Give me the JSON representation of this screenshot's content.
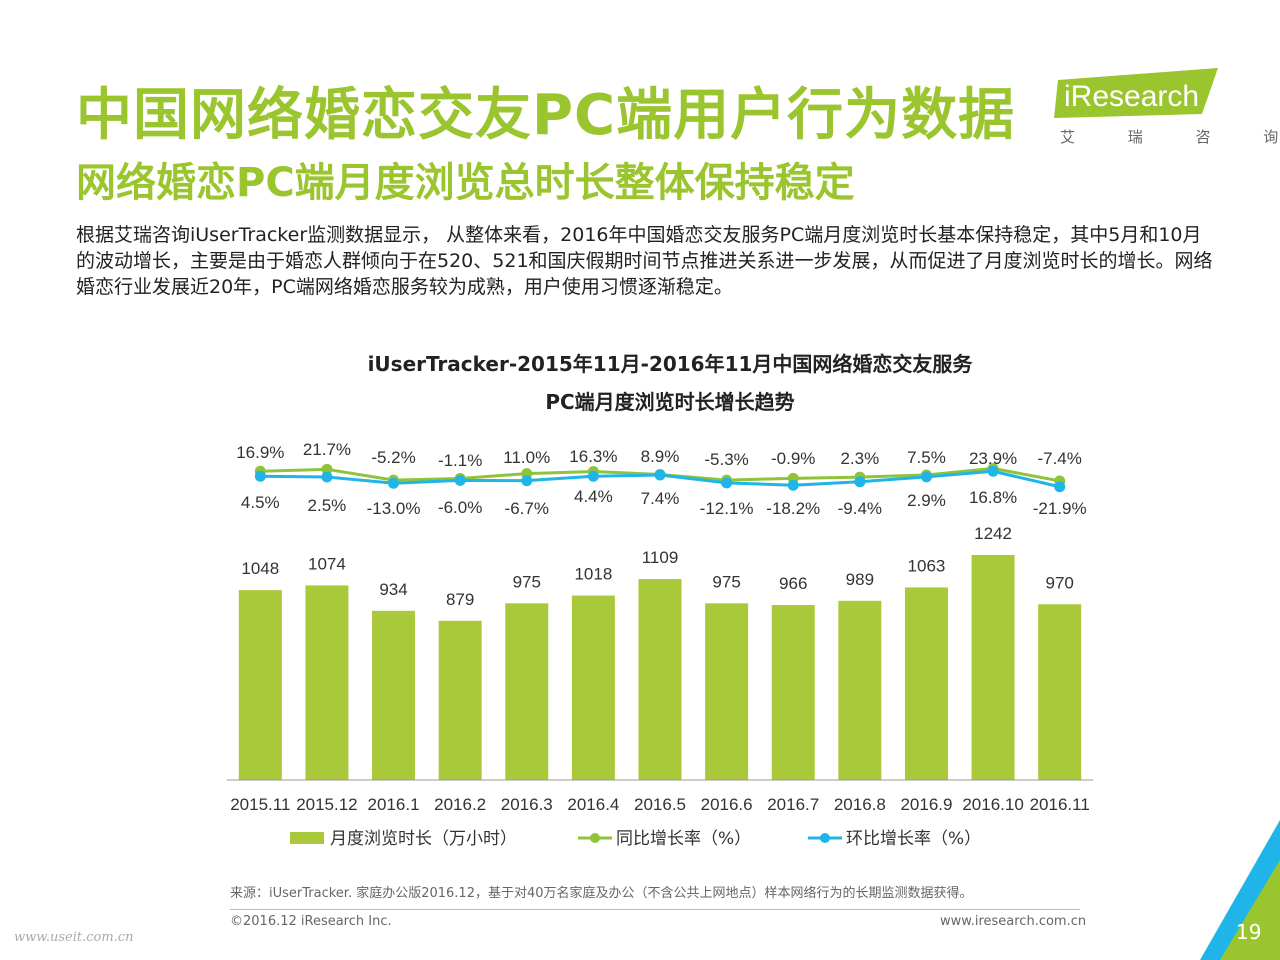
{
  "title": "中国网络婚恋交友PC端用户行为数据",
  "subtitle": "网络婚恋PC端月度浏览总时长整体保持稳定",
  "logo": {
    "brand": "iResearch",
    "sub": "艾 瑞 咨 询",
    "color": "#9ac52e"
  },
  "body_text": "根据艾瑞咨询iUserTracker监测数据显示， 从整体来看，2016年中国婚恋交友服务PC端月度浏览时长基本保持稳定，其中5月和10月的波动增长，主要是由于婚恋人群倾向于在520、521和国庆假期时间节点推进关系进一步发展，从而促进了月度浏览时长的增长。网络婚恋行业发展近20年，PC端网络婚恋服务较为成熟，用户使用习惯逐渐稳定。",
  "chart_data": {
    "type": "bar",
    "title_line1": "iUserTracker-2015年11月-2016年11月中国网络婚恋交友服务",
    "title_line2": "PC端月度浏览时长增长趋势",
    "categories": [
      "2015.11",
      "2015.12",
      "2016.1",
      "2016.2",
      "2016.3",
      "2016.4",
      "2016.5",
      "2016.6",
      "2016.7",
      "2016.8",
      "2016.9",
      "2016.10",
      "2016.11"
    ],
    "series": [
      {
        "name": "月度浏览时长（万小时）",
        "type": "bar",
        "color": "#a9c93a",
        "values": [
          1048,
          1074,
          934,
          879,
          975,
          1018,
          1109,
          975,
          966,
          989,
          1063,
          1242,
          970
        ]
      },
      {
        "name": "同比增长率（%）",
        "type": "line",
        "color": "#8fc43a",
        "values": [
          16.9,
          21.7,
          -5.2,
          -1.1,
          11.0,
          16.3,
          8.9,
          -5.3,
          -0.9,
          2.3,
          7.5,
          23.9,
          -7.4
        ],
        "labels": [
          "16.9%",
          "21.7%",
          "-5.2%",
          "-1.1%",
          "11.0%",
          "16.3%",
          "8.9%",
          "-5.3%",
          "-0.9%",
          "2.3%",
          "7.5%",
          "23.9%",
          "-7.4%"
        ]
      },
      {
        "name": "环比增长率（%）",
        "type": "line",
        "color": "#1fb5e8",
        "values": [
          4.5,
          2.5,
          -13.0,
          -6.0,
          -6.7,
          4.4,
          7.4,
          -12.1,
          -18.2,
          -9.4,
          2.9,
          16.8,
          -21.9
        ],
        "labels": [
          "4.5%",
          "2.5%",
          "-13.0%",
          "-6.0%",
          "-6.7%",
          "4.4%",
          "7.4%",
          "-12.1%",
          "-18.2%",
          "-9.4%",
          "2.9%",
          "16.8%",
          "-21.9%"
        ]
      }
    ],
    "grid": false,
    "legend_position": "bottom"
  },
  "source": "来源：iUserTracker. 家庭办公版2016.12，基于对40万名家庭及办公（不含公共上网地点）样本网络行为的长期监测数据获得。",
  "copyright": "©2016.12 iResearch Inc.",
  "website": "www.iresearch.com.cn",
  "watermark": "www.useit.com.cn",
  "page_number": "19"
}
